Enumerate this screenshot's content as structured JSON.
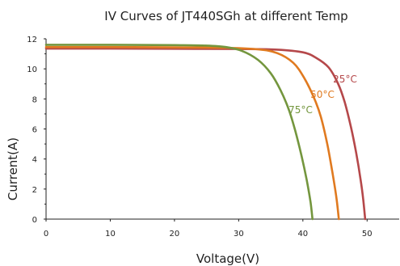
{
  "chart_data": {
    "type": "line",
    "title": "IV Curves of JT440SGh at different Temp",
    "xlabel": "Voltage(V)",
    "ylabel": "Current(A)",
    "xlim": [
      0,
      55
    ],
    "ylim": [
      0,
      12
    ],
    "xticks": [
      0,
      10,
      20,
      30,
      40,
      50
    ],
    "yticks": [
      0,
      2,
      4,
      6,
      8,
      10,
      12
    ],
    "grid": false,
    "series": [
      {
        "name": "25°C",
        "color": "#b5484a",
        "points": [
          [
            0,
            11.35
          ],
          [
            10,
            11.35
          ],
          [
            20,
            11.34
          ],
          [
            30,
            11.32
          ],
          [
            36,
            11.28
          ],
          [
            40,
            11.1
          ],
          [
            42,
            10.75
          ],
          [
            44,
            10.1
          ],
          [
            45.5,
            9.0
          ],
          [
            46.5,
            7.8
          ],
          [
            47.5,
            6.1
          ],
          [
            48.3,
            4.4
          ],
          [
            49.0,
            2.6
          ],
          [
            49.4,
            1.3
          ],
          [
            49.7,
            0
          ]
        ]
      },
      {
        "name": "50°C",
        "color": "#e07a20",
        "points": [
          [
            0,
            11.45
          ],
          [
            10,
            11.45
          ],
          [
            20,
            11.43
          ],
          [
            28,
            11.4
          ],
          [
            33,
            11.3
          ],
          [
            36,
            11.05
          ],
          [
            38.5,
            10.4
          ],
          [
            40.2,
            9.4
          ],
          [
            41.8,
            8.0
          ],
          [
            42.8,
            6.8
          ],
          [
            43.8,
            5.0
          ],
          [
            44.6,
            3.1
          ],
          [
            45.2,
            1.5
          ],
          [
            45.6,
            0
          ]
        ]
      },
      {
        "name": "75°C",
        "color": "#74963e",
        "points": [
          [
            0,
            11.6
          ],
          [
            10,
            11.6
          ],
          [
            20,
            11.58
          ],
          [
            25,
            11.55
          ],
          [
            28,
            11.45
          ],
          [
            30.5,
            11.2
          ],
          [
            33,
            10.6
          ],
          [
            35,
            9.7
          ],
          [
            36.5,
            8.6
          ],
          [
            37.8,
            7.3
          ],
          [
            38.8,
            5.9
          ],
          [
            39.8,
            4.2
          ],
          [
            40.6,
            2.6
          ],
          [
            41.2,
            1.1
          ],
          [
            41.5,
            0
          ]
        ]
      }
    ]
  }
}
